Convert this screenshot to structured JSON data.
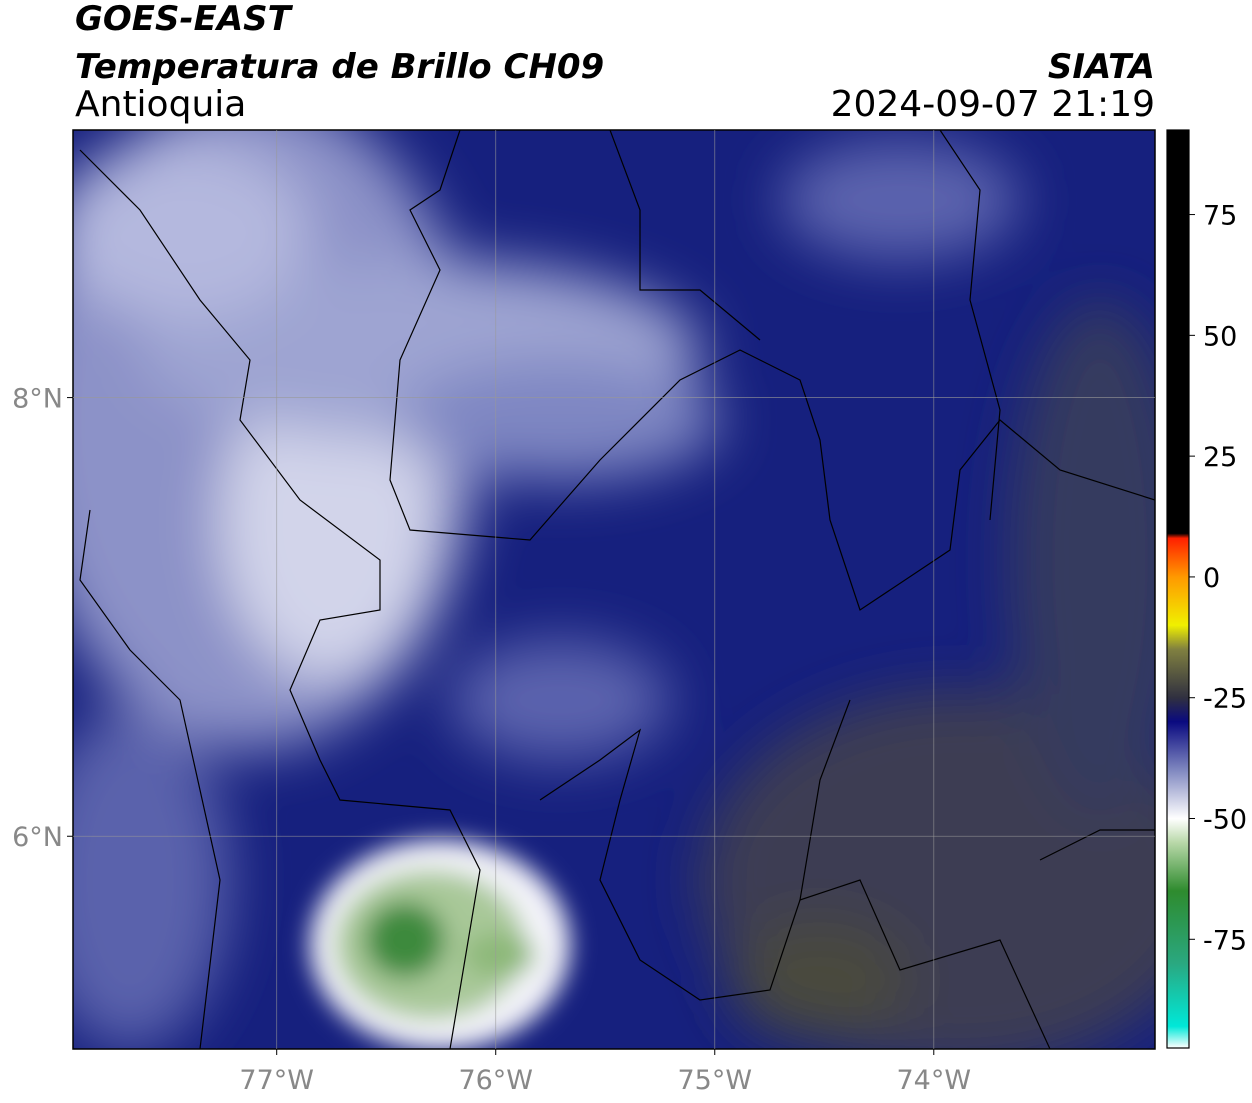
{
  "chart_data": {
    "type": "map",
    "title": "GOES-EAST",
    "subtitle": "Temperatura de Brillo CH09",
    "region": "Antioquia",
    "source": "SIATA",
    "datetime": "2024-09-07 21:19",
    "xlim": [
      -77.93,
      -72.99
    ],
    "ylim": [
      5.03,
      9.22
    ],
    "xticks": [
      {
        "value": -77,
        "label": "77°W"
      },
      {
        "value": -76,
        "label": "76°W"
      },
      {
        "value": -75,
        "label": "75°W"
      },
      {
        "value": -74,
        "label": "74°W"
      }
    ],
    "yticks": [
      {
        "value": 6,
        "label": "6°N"
      },
      {
        "value": 8,
        "label": "8°N"
      }
    ],
    "grid": true,
    "colorbar": {
      "lim": [
        -97.5,
        92.5
      ],
      "ticks": [
        75,
        50,
        25,
        0,
        -25,
        -50,
        -75
      ],
      "stops": [
        {
          "value": -97.5,
          "color": "#ffffff"
        },
        {
          "value": -93,
          "color": "#00e8d8"
        },
        {
          "value": -80,
          "color": "#2aa880"
        },
        {
          "value": -65,
          "color": "#2e8b2e"
        },
        {
          "value": -55,
          "color": "#b8d8a8"
        },
        {
          "value": -50,
          "color": "#ffffff"
        },
        {
          "value": -40,
          "color": "#8088c0"
        },
        {
          "value": -30,
          "color": "#0a0a80"
        },
        {
          "value": -25,
          "color": "#303040"
        },
        {
          "value": -15,
          "color": "#808040"
        },
        {
          "value": -10,
          "color": "#f0f000"
        },
        {
          "value": 0,
          "color": "#ff9900"
        },
        {
          "value": 8,
          "color": "#ff2000"
        },
        {
          "value": 9,
          "color": "#000000"
        },
        {
          "value": 92.5,
          "color": "#000000"
        }
      ]
    }
  }
}
